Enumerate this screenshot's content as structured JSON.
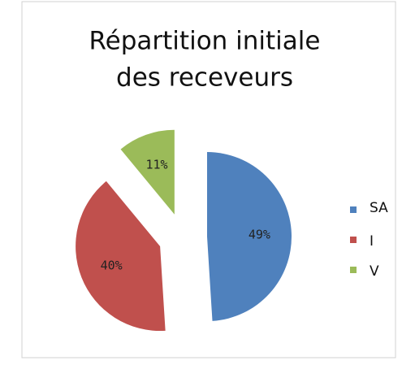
{
  "chart_data": {
    "type": "pie",
    "title": [
      "Répartition initiale",
      "des receveurs"
    ],
    "categories": [
      "SA",
      "I",
      "V"
    ],
    "values": [
      49,
      40,
      11
    ],
    "value_labels": [
      "49%",
      "40%",
      "11%"
    ],
    "colors": [
      "#4f81bd",
      "#c0504d",
      "#9bbb59"
    ],
    "legend": "right"
  }
}
